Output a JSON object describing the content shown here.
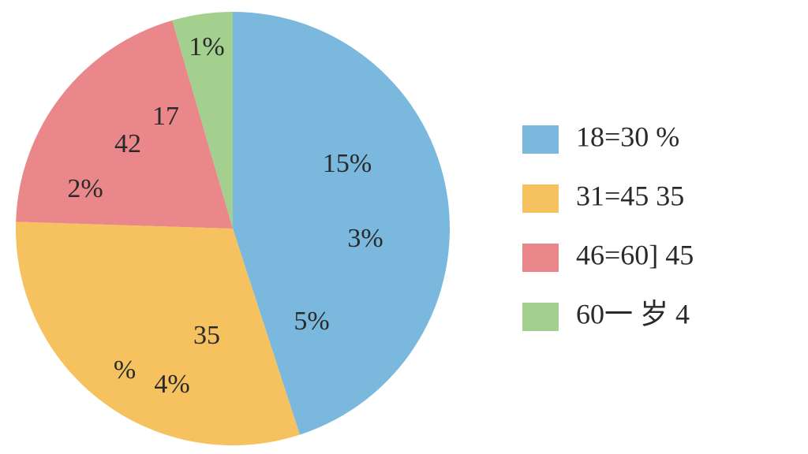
{
  "chart_data": {
    "type": "pie",
    "categories": [
      "18=30  %",
      "31=45  35",
      "46=60] 45",
      "60一 岁  4"
    ],
    "values": [
      45,
      30.5,
      20,
      4.5
    ],
    "colors": [
      "#7ab8de",
      "#f6c25f",
      "#ea878b",
      "#a3d08e"
    ],
    "annotations": [
      "1%",
      "17",
      "42",
      "2%",
      "15%",
      "3%",
      "5%",
      "35",
      "%",
      "4%"
    ],
    "legend": "right"
  }
}
